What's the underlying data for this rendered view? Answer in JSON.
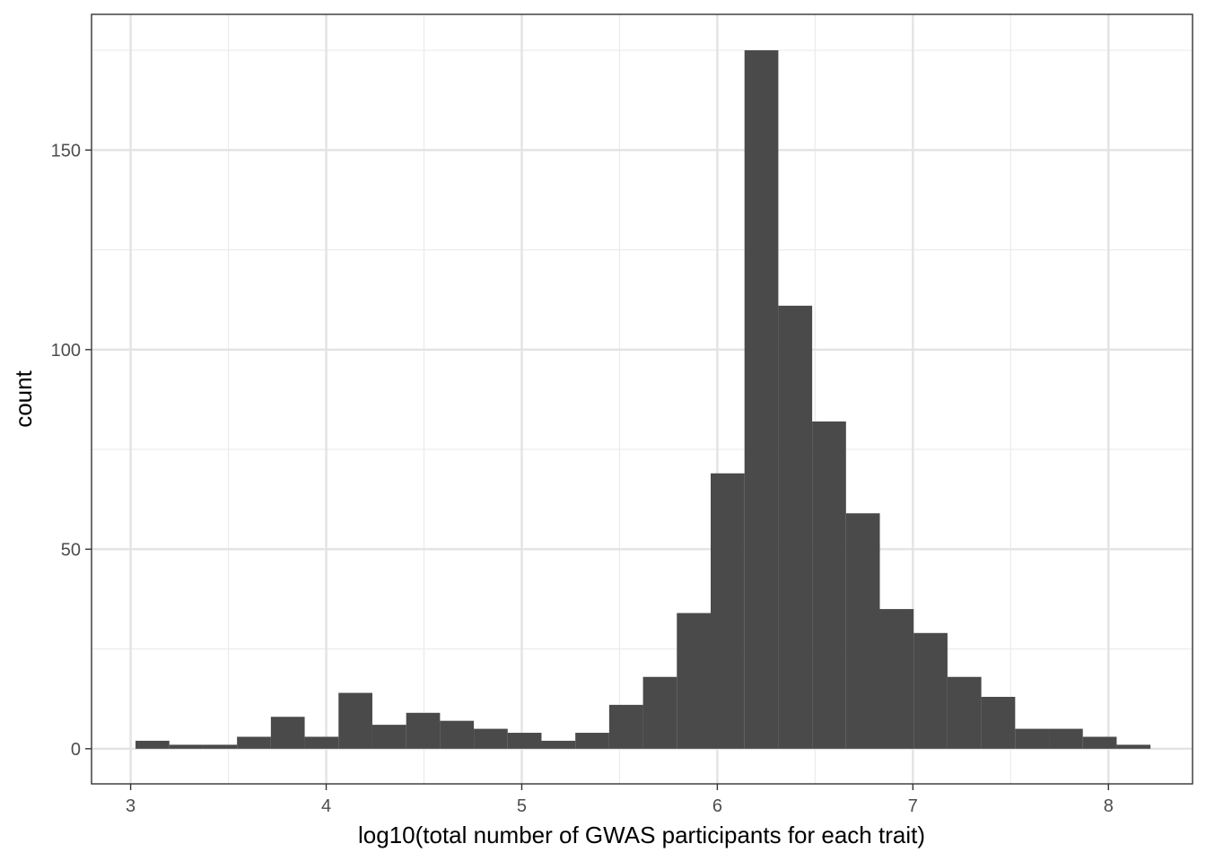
{
  "chart_data": {
    "type": "bar",
    "subtype": "histogram",
    "title": "",
    "xlabel": "log10(total number of GWAS participants for each trait)",
    "ylabel": "count",
    "xlim": [
      2.8,
      8.43
    ],
    "ylim": [
      -8.8,
      184
    ],
    "x_ticks": [
      3,
      4,
      5,
      6,
      7,
      8
    ],
    "x_tick_labels": [
      "3",
      "4",
      "5",
      "6",
      "7",
      "8"
    ],
    "x_minor_ticks": [
      3.5,
      4.5,
      5.5,
      6.5,
      7.5
    ],
    "y_ticks": [
      0,
      50,
      100,
      150
    ],
    "y_tick_labels": [
      "0",
      "50",
      "100",
      "150"
    ],
    "y_minor_ticks": [
      25,
      75,
      125,
      175
    ],
    "grid": true,
    "bar_color": "#4a4a4a",
    "bins": [
      {
        "x0": 3.025,
        "x1": 3.198,
        "count": 2
      },
      {
        "x0": 3.198,
        "x1": 3.371,
        "count": 1
      },
      {
        "x0": 3.371,
        "x1": 3.544,
        "count": 1
      },
      {
        "x0": 3.544,
        "x1": 3.717,
        "count": 3
      },
      {
        "x0": 3.717,
        "x1": 3.89,
        "count": 8
      },
      {
        "x0": 3.89,
        "x1": 4.063,
        "count": 3
      },
      {
        "x0": 4.063,
        "x1": 4.236,
        "count": 14
      },
      {
        "x0": 4.236,
        "x1": 4.409,
        "count": 6
      },
      {
        "x0": 4.409,
        "x1": 4.582,
        "count": 9
      },
      {
        "x0": 4.582,
        "x1": 4.755,
        "count": 7
      },
      {
        "x0": 4.755,
        "x1": 4.928,
        "count": 5
      },
      {
        "x0": 4.928,
        "x1": 5.101,
        "count": 4
      },
      {
        "x0": 5.101,
        "x1": 5.274,
        "count": 2
      },
      {
        "x0": 5.274,
        "x1": 5.447,
        "count": 4
      },
      {
        "x0": 5.447,
        "x1": 5.62,
        "count": 11
      },
      {
        "x0": 5.62,
        "x1": 5.793,
        "count": 18
      },
      {
        "x0": 5.793,
        "x1": 5.966,
        "count": 34
      },
      {
        "x0": 5.966,
        "x1": 6.139,
        "count": 69
      },
      {
        "x0": 6.139,
        "x1": 6.312,
        "count": 175
      },
      {
        "x0": 6.312,
        "x1": 6.485,
        "count": 111
      },
      {
        "x0": 6.485,
        "x1": 6.658,
        "count": 82
      },
      {
        "x0": 6.658,
        "x1": 6.831,
        "count": 59
      },
      {
        "x0": 6.831,
        "x1": 7.004,
        "count": 35
      },
      {
        "x0": 7.004,
        "x1": 7.177,
        "count": 29
      },
      {
        "x0": 7.177,
        "x1": 7.35,
        "count": 18
      },
      {
        "x0": 7.35,
        "x1": 7.523,
        "count": 13
      },
      {
        "x0": 7.523,
        "x1": 7.696,
        "count": 5
      },
      {
        "x0": 7.696,
        "x1": 7.869,
        "count": 5
      },
      {
        "x0": 7.869,
        "x1": 8.042,
        "count": 3
      },
      {
        "x0": 8.042,
        "x1": 8.215,
        "count": 1
      }
    ]
  }
}
